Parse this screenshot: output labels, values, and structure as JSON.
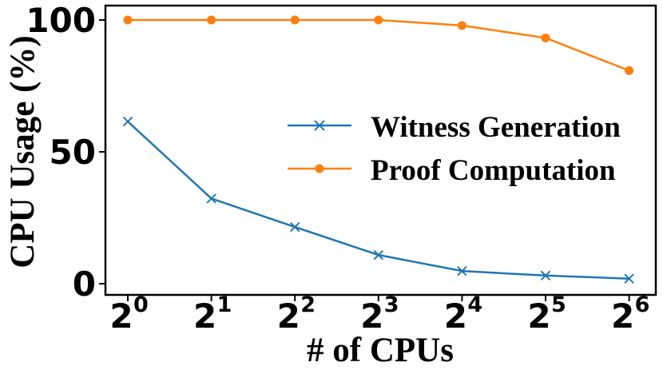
{
  "chart_data": {
    "type": "line",
    "x": [
      1,
      2,
      4,
      8,
      16,
      32,
      64
    ],
    "categories": [
      "2",
      "2",
      "2",
      "2",
      "2",
      "2",
      "2"
    ],
    "category_exponents": [
      "0",
      "1",
      "2",
      "3",
      "4",
      "5",
      "6"
    ],
    "xlabel": "# of CPUs",
    "ylabel": "CPU Usage (%)",
    "ylim": [
      0,
      100
    ],
    "yticks": [
      0,
      50,
      100
    ],
    "x_scale": "log2",
    "grid": false,
    "legend_position": "center-right",
    "series": [
      {
        "name": "Witness Generation",
        "color": "#1f77b4",
        "marker": "x",
        "values": [
          61.5,
          32.3,
          21.5,
          10.9,
          4.8,
          3.1,
          1.9
        ]
      },
      {
        "name": "Proof Computation",
        "color": "#ff7f0e",
        "marker": "circle",
        "values": [
          100,
          100,
          100,
          100,
          97.9,
          93.2,
          80.8
        ]
      }
    ]
  }
}
